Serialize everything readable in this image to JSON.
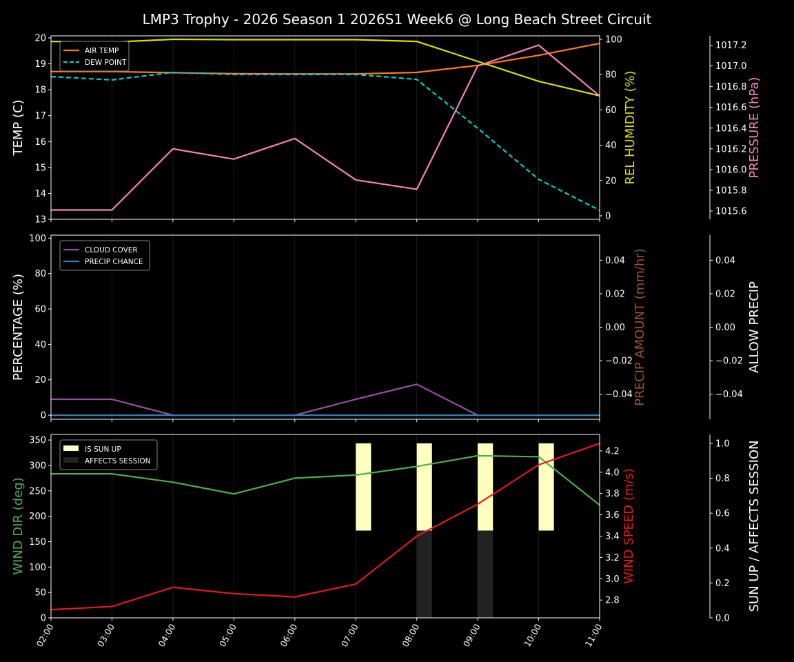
{
  "title": "LMP3 Trophy - 2026 Season 1 2026S1 Week6 @ Long Beach Street Circuit",
  "chart_data": [
    {
      "type": "line",
      "x": [
        "02:00",
        "03:00",
        "04:00",
        "05:00",
        "06:00",
        "07:00",
        "08:00",
        "09:00",
        "10:00",
        "11:00"
      ],
      "grid": "vertical",
      "legend_placement": "upper-left",
      "axes": [
        {
          "id": "temp",
          "side": "left",
          "label": "TEMP (C)",
          "label_color": "#ffffff",
          "ylim": [
            13,
            20.08
          ],
          "ticks": [
            13,
            14,
            15,
            16,
            17,
            18,
            19,
            20
          ],
          "tick_labels": [
            "13",
            "14",
            "15",
            "16",
            "17",
            "18",
            "19",
            "20"
          ]
        },
        {
          "id": "hum",
          "side": "right",
          "label": "REL HUMIDITY (%)",
          "label_color": "#dddd00",
          "ylim": [
            -1.95,
            101.95
          ],
          "ticks": [
            0,
            20,
            40,
            60,
            80,
            100
          ],
          "tick_labels": [
            "0",
            "20",
            "40",
            "60",
            "80",
            "100"
          ]
        },
        {
          "id": "pres",
          "side": "right2",
          "label": "PRESSURE (hPa)",
          "label_color": "#f781bf",
          "ylim": [
            1015.52,
            1017.29
          ],
          "ticks": [
            1015.6,
            1015.8,
            1016.0,
            1016.2,
            1016.4,
            1016.6,
            1016.8,
            1017.0,
            1017.2
          ],
          "tick_labels": [
            "1015.6",
            "1015.8",
            "1016.0",
            "1016.2",
            "1016.4",
            "1016.6",
            "1016.8",
            "1017.0",
            "1017.2"
          ]
        }
      ],
      "series": [
        {
          "name": "AIR TEMP",
          "axis": "temp",
          "color": "#ff7f0e",
          "dash": false,
          "legend": true,
          "values": [
            18.7,
            18.7,
            18.66,
            18.62,
            18.61,
            18.61,
            18.67,
            18.94,
            19.33,
            19.79
          ]
        },
        {
          "name": "DEW POINT",
          "axis": "temp",
          "color": "#00d0d0",
          "dash": true,
          "legend": true,
          "values": [
            18.51,
            18.38,
            18.67,
            18.59,
            18.59,
            18.59,
            18.4,
            16.51,
            14.54,
            13.35
          ]
        },
        {
          "axis": "hum",
          "color": "#dddd00",
          "dash": false,
          "legend": false,
          "values": [
            98.8,
            98.4,
            100,
            99.8,
            99.8,
            99.8,
            98.8,
            87.5,
            76.2,
            68.0
          ]
        },
        {
          "axis": "pres",
          "color": "#f781bf",
          "dash": false,
          "legend": false,
          "values": [
            1015.61,
            1015.61,
            1016.2,
            1016.1,
            1016.3,
            1015.9,
            1015.81,
            1017.0,
            1017.2,
            1016.71
          ]
        }
      ]
    },
    {
      "type": "line",
      "x": [
        "02:00",
        "03:00",
        "04:00",
        "05:00",
        "06:00",
        "07:00",
        "08:00",
        "09:00",
        "10:00",
        "11:00"
      ],
      "grid": "vertical",
      "legend_placement": "upper-left",
      "axes": [
        {
          "id": "pct",
          "side": "left",
          "label": "PERCENTAGE (%)",
          "label_color": "#ffffff",
          "ylim": [
            -2.3,
            101.7
          ],
          "ticks": [
            0,
            20,
            40,
            60,
            80,
            100
          ],
          "tick_labels": [
            "0",
            "20",
            "40",
            "60",
            "80",
            "100"
          ]
        },
        {
          "id": "amt",
          "side": "right",
          "label": "PRECIP AMOUNT (mm/hr)",
          "label_color": "#a0522d",
          "ylim": [
            -0.055,
            0.055
          ],
          "ticks": [
            -0.04,
            -0.02,
            0,
            0.02,
            0.04
          ],
          "tick_labels": [
            "−0.04",
            "−0.02",
            "0.00",
            "0.02",
            "0.04"
          ]
        },
        {
          "id": "allow",
          "side": "right2",
          "label": "ALLOW PRECIP",
          "label_color": "#ffffff",
          "ylim": [
            -0.055,
            0.055
          ],
          "ticks": [
            -0.04,
            -0.02,
            0,
            0.02,
            0.04
          ],
          "tick_labels": [
            "−0.04",
            "−0.02",
            "0.00",
            "0.02",
            "0.04"
          ]
        }
      ],
      "series": [
        {
          "name": "CLOUD COVER",
          "axis": "pct",
          "color": "#984ea3",
          "dash": false,
          "legend": true,
          "values": [
            9,
            9,
            0,
            0,
            0,
            9,
            17.5,
            0,
            0,
            0
          ]
        },
        {
          "name": "PRECIP CHANCE",
          "axis": "pct",
          "color": "#377eb8",
          "dash": false,
          "legend": true,
          "values": [
            0,
            0,
            0,
            0,
            0,
            0,
            0,
            0,
            0,
            0
          ]
        }
      ]
    },
    {
      "type": "line",
      "x": [
        "02:00",
        "03:00",
        "04:00",
        "05:00",
        "06:00",
        "07:00",
        "08:00",
        "09:00",
        "10:00",
        "11:00"
      ],
      "grid": "vertical",
      "legend_placement": "upper-left",
      "axes": [
        {
          "id": "dir",
          "side": "left",
          "label": "WIND DIR (deg)",
          "label_color": "#4daf4a",
          "ylim": [
            0,
            361
          ],
          "ticks": [
            0,
            50,
            100,
            150,
            200,
            250,
            300,
            350
          ],
          "tick_labels": [
            "0",
            "50",
            "100",
            "150",
            "200",
            "250",
            "300",
            "350"
          ]
        },
        {
          "id": "spd",
          "side": "right",
          "label": "WIND SPEED (m/s)",
          "label_color": "#e41a1c",
          "ylim": [
            2.633,
            4.3545
          ],
          "ticks": [
            2.8,
            3.0,
            3.2,
            3.4,
            3.6,
            3.8,
            4.0,
            4.2
          ],
          "tick_labels": [
            "2.8",
            "3.0",
            "3.2",
            "3.4",
            "3.6",
            "3.8",
            "4.0",
            "4.2"
          ]
        },
        {
          "id": "sun",
          "side": "right2",
          "label": "SUN UP / AFFECTS SESSION",
          "label_color": "#ffffff",
          "ylim": [
            0,
            1.051
          ],
          "ticks": [
            0,
            0.2,
            0.4,
            0.6,
            0.8,
            1.0
          ],
          "tick_labels": [
            "0.0",
            "0.2",
            "0.4",
            "0.6",
            "0.8",
            "1.0"
          ]
        }
      ],
      "bars": [
        {
          "name": "IS SUN UP",
          "axis": "sun",
          "color": "#ffffc0",
          "bottom": 0.5,
          "values": [
            0,
            0,
            0,
            0,
            0,
            0.5,
            0.5,
            0.5,
            0.5,
            0
          ]
        },
        {
          "name": "AFFECTS SESSION",
          "axis": "sun",
          "color": "#222222",
          "bottom": 0,
          "values": [
            0,
            0,
            0,
            0,
            0,
            0,
            0.5,
            0.5,
            0,
            0
          ]
        }
      ],
      "series": [
        {
          "axis": "dir",
          "color": "#4daf4a",
          "dash": false,
          "legend": false,
          "values": [
            283.5,
            283.5,
            267,
            244,
            275,
            281,
            298,
            319,
            317,
            222
          ]
        },
        {
          "axis": "spd",
          "color": "#e41a1c",
          "dash": false,
          "legend": false,
          "values": [
            2.71,
            2.74,
            2.92,
            2.86,
            2.83,
            2.95,
            3.4,
            3.7,
            4.07,
            4.27
          ]
        }
      ]
    }
  ]
}
